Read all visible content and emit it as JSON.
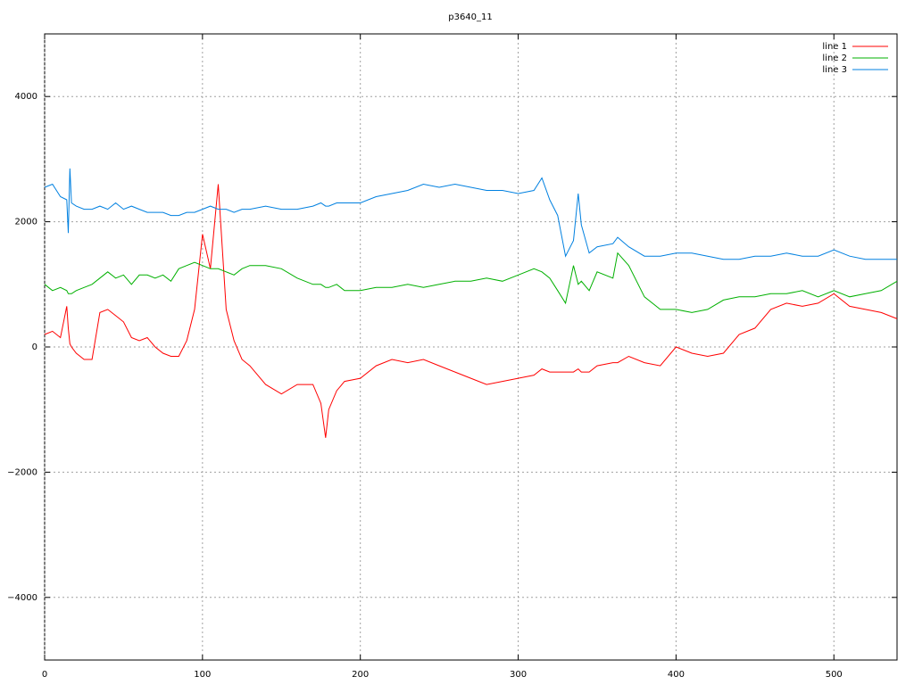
{
  "chart_data": {
    "type": "line",
    "title": "p3640_11",
    "x": [
      0,
      5,
      10,
      14,
      15,
      16,
      17,
      20,
      25,
      30,
      35,
      40,
      45,
      50,
      55,
      60,
      65,
      70,
      75,
      80,
      85,
      90,
      95,
      100,
      105,
      110,
      115,
      120,
      125,
      130,
      140,
      150,
      160,
      170,
      175,
      178,
      180,
      185,
      190,
      200,
      210,
      220,
      230,
      240,
      250,
      260,
      270,
      280,
      290,
      300,
      310,
      315,
      320,
      325,
      330,
      335,
      338,
      340,
      345,
      350,
      360,
      363,
      370,
      380,
      390,
      400,
      410,
      420,
      430,
      440,
      450,
      460,
      470,
      480,
      490,
      500,
      510,
      520,
      530,
      540
    ],
    "series": [
      {
        "name": "line 1",
        "color": "#ff0000",
        "values": [
          200,
          250,
          150,
          650,
          300,
          50,
          0,
          -100,
          -200,
          -200,
          550,
          600,
          500,
          400,
          150,
          100,
          150,
          0,
          -100,
          -150,
          -150,
          100,
          600,
          1800,
          1250,
          2600,
          600,
          100,
          -200,
          -300,
          -600,
          -750,
          -600,
          -600,
          -900,
          -1450,
          -1000,
          -700,
          -550,
          -500,
          -300,
          -200,
          -250,
          -200,
          -300,
          -400,
          -500,
          -600,
          -550,
          -500,
          -450,
          -350,
          -400,
          -400,
          -400,
          -400,
          -350,
          -400,
          -400,
          -300,
          -250,
          -250,
          -150,
          -250,
          -300,
          0,
          -100,
          -150,
          -100,
          200,
          300,
          600,
          700,
          650,
          700,
          850,
          650,
          600,
          550,
          450
        ]
      },
      {
        "name": "line 2",
        "color": "#00b000",
        "values": [
          1000,
          900,
          950,
          900,
          850,
          850,
          850,
          900,
          950,
          1000,
          1100,
          1200,
          1100,
          1150,
          1000,
          1150,
          1150,
          1100,
          1150,
          1050,
          1250,
          1300,
          1350,
          1300,
          1250,
          1250,
          1200,
          1150,
          1250,
          1300,
          1300,
          1250,
          1100,
          1000,
          1000,
          950,
          950,
          1000,
          900,
          900,
          950,
          950,
          1000,
          950,
          1000,
          1050,
          1050,
          1100,
          1050,
          1150,
          1250,
          1200,
          1100,
          900,
          700,
          1300,
          1000,
          1050,
          900,
          1200,
          1100,
          1500,
          1300,
          800,
          600,
          600,
          550,
          600,
          750,
          800,
          800,
          850,
          850,
          900,
          800,
          900,
          800,
          850,
          900,
          1050
        ]
      },
      {
        "name": "line 3",
        "color": "#0080e0",
        "values": [
          2550,
          2600,
          2400,
          2350,
          1820,
          2850,
          2300,
          2250,
          2200,
          2200,
          2250,
          2200,
          2300,
          2200,
          2250,
          2200,
          2150,
          2150,
          2150,
          2100,
          2100,
          2150,
          2150,
          2200,
          2250,
          2200,
          2200,
          2150,
          2200,
          2200,
          2250,
          2200,
          2200,
          2250,
          2300,
          2250,
          2250,
          2300,
          2300,
          2300,
          2400,
          2450,
          2500,
          2600,
          2550,
          2600,
          2550,
          2500,
          2500,
          2450,
          2500,
          2700,
          2350,
          2100,
          1450,
          1700,
          2450,
          1950,
          1500,
          1600,
          1650,
          1750,
          1600,
          1450,
          1450,
          1500,
          1500,
          1450,
          1400,
          1400,
          1450,
          1450,
          1500,
          1450,
          1450,
          1550,
          1450,
          1400,
          1400,
          1400
        ]
      }
    ],
    "xlim": [
      0,
      540
    ],
    "ylim": [
      -5000,
      5000
    ],
    "xticks": [
      0,
      100,
      200,
      300,
      400,
      500
    ],
    "yticks": [
      {
        "value": -4000,
        "label": "−4000"
      },
      {
        "value": -2000,
        "label": "−2000"
      },
      0,
      2000,
      4000
    ],
    "grid": true,
    "legend": "top-right"
  }
}
